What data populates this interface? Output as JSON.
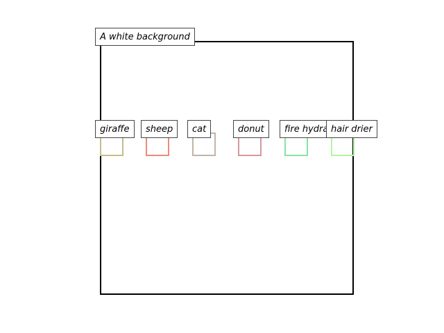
{
  "scene": {
    "caption": "A white background",
    "objects": [
      {
        "label": "giraffe",
        "color": "#c8bc84"
      },
      {
        "label": "sheep",
        "color": "#ee8a78"
      },
      {
        "label": "cat",
        "color": "#c2b4a8"
      },
      {
        "label": "donut",
        "color": "#d6989a"
      },
      {
        "label": "fire hydrant",
        "color": "#86e2a4"
      },
      {
        "label": "hair drier",
        "color": "#b2f4a2"
      }
    ]
  }
}
